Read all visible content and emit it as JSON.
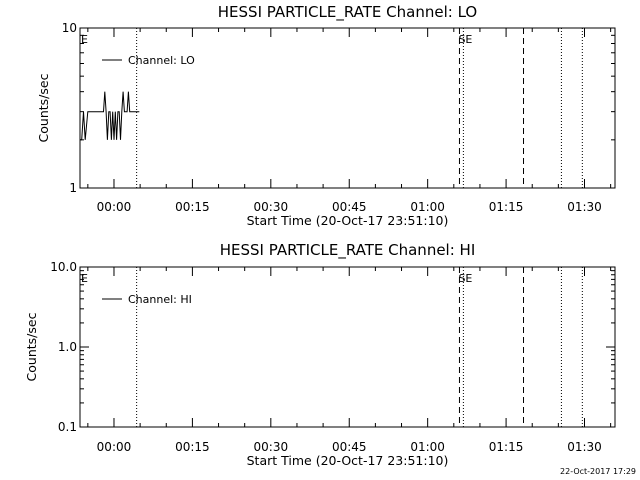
{
  "footer_timestamp": "22-Oct-2017 17:29",
  "chart_data": [
    {
      "type": "line",
      "title": "HESSI PARTICLE_RATE Channel: LO",
      "xlabel": "Start Time (20-Oct-17 23:51:10)",
      "ylabel": "Counts/sec",
      "yscale": "log",
      "ylim": [
        1,
        10
      ],
      "ytick_values": [
        1,
        10
      ],
      "ytick_labels": [
        "1",
        "10"
      ],
      "xlim_seconds": [
        -390,
        5750
      ],
      "xtick_seconds": [
        0,
        900,
        1800,
        2700,
        3600,
        4500,
        5400
      ],
      "xtick_labels": [
        "00:00",
        "00:15",
        "00:30",
        "00:45",
        "01:00",
        "01:15",
        "01:30"
      ],
      "legend_position": "top-left",
      "series": [
        {
          "name": "Channel: LO",
          "x": [
            -390,
            -370,
            -350,
            -330,
            -300,
            -250,
            -200,
            -150,
            -120,
            -105,
            -90,
            -75,
            -60,
            -45,
            -30,
            -15,
            0,
            15,
            30,
            45,
            60,
            75,
            90,
            105,
            120,
            135,
            150,
            165,
            180,
            195,
            210,
            225,
            250,
            290
          ],
          "y": [
            2,
            2,
            3,
            2,
            3,
            3,
            3,
            3,
            3,
            4,
            3,
            2,
            3,
            3,
            2,
            3,
            2,
            3,
            2,
            3,
            3,
            2,
            3,
            4,
            3,
            3,
            3,
            4,
            3,
            3,
            3,
            3,
            3,
            3
          ]
        }
      ],
      "vertical_markers": [
        {
          "x_seconds": 260,
          "style": "dotted",
          "label": ""
        },
        {
          "x_seconds": 5135,
          "style": "dotted",
          "label": ""
        },
        {
          "x_seconds": 5375,
          "style": "dotted",
          "label": ""
        },
        {
          "x_seconds": 3965,
          "style": "dashed",
          "label": ""
        },
        {
          "x_seconds": 4700,
          "style": "dashed",
          "label": ""
        },
        {
          "x_seconds": 4010,
          "style": "dotted",
          "label": ""
        }
      ],
      "corner_labels": [
        "E",
        "SE"
      ]
    },
    {
      "type": "line",
      "title": "HESSI PARTICLE_RATE Channel: HI",
      "xlabel": "Start Time (20-Oct-17 23:51:10)",
      "ylabel": "Counts/sec",
      "yscale": "log",
      "ylim": [
        0.1,
        10
      ],
      "ytick_values": [
        0.1,
        1,
        10
      ],
      "ytick_labels": [
        "0.1",
        "1.0",
        "10.0"
      ],
      "xlim_seconds": [
        -390,
        5750
      ],
      "xtick_seconds": [
        0,
        900,
        1800,
        2700,
        3600,
        4500,
        5400
      ],
      "xtick_labels": [
        "00:00",
        "00:15",
        "00:30",
        "00:45",
        "01:00",
        "01:15",
        "01:30"
      ],
      "legend_position": "top-left",
      "series": [
        {
          "name": "Channel: HI",
          "x": [],
          "y": []
        }
      ],
      "vertical_markers": [
        {
          "x_seconds": 260,
          "style": "dotted",
          "label": ""
        },
        {
          "x_seconds": 5135,
          "style": "dotted",
          "label": ""
        },
        {
          "x_seconds": 5375,
          "style": "dotted",
          "label": ""
        },
        {
          "x_seconds": 3965,
          "style": "dashed",
          "label": ""
        },
        {
          "x_seconds": 4700,
          "style": "dashed",
          "label": ""
        },
        {
          "x_seconds": 4010,
          "style": "dotted",
          "label": ""
        }
      ],
      "corner_labels": [
        "E",
        "SE"
      ]
    }
  ]
}
